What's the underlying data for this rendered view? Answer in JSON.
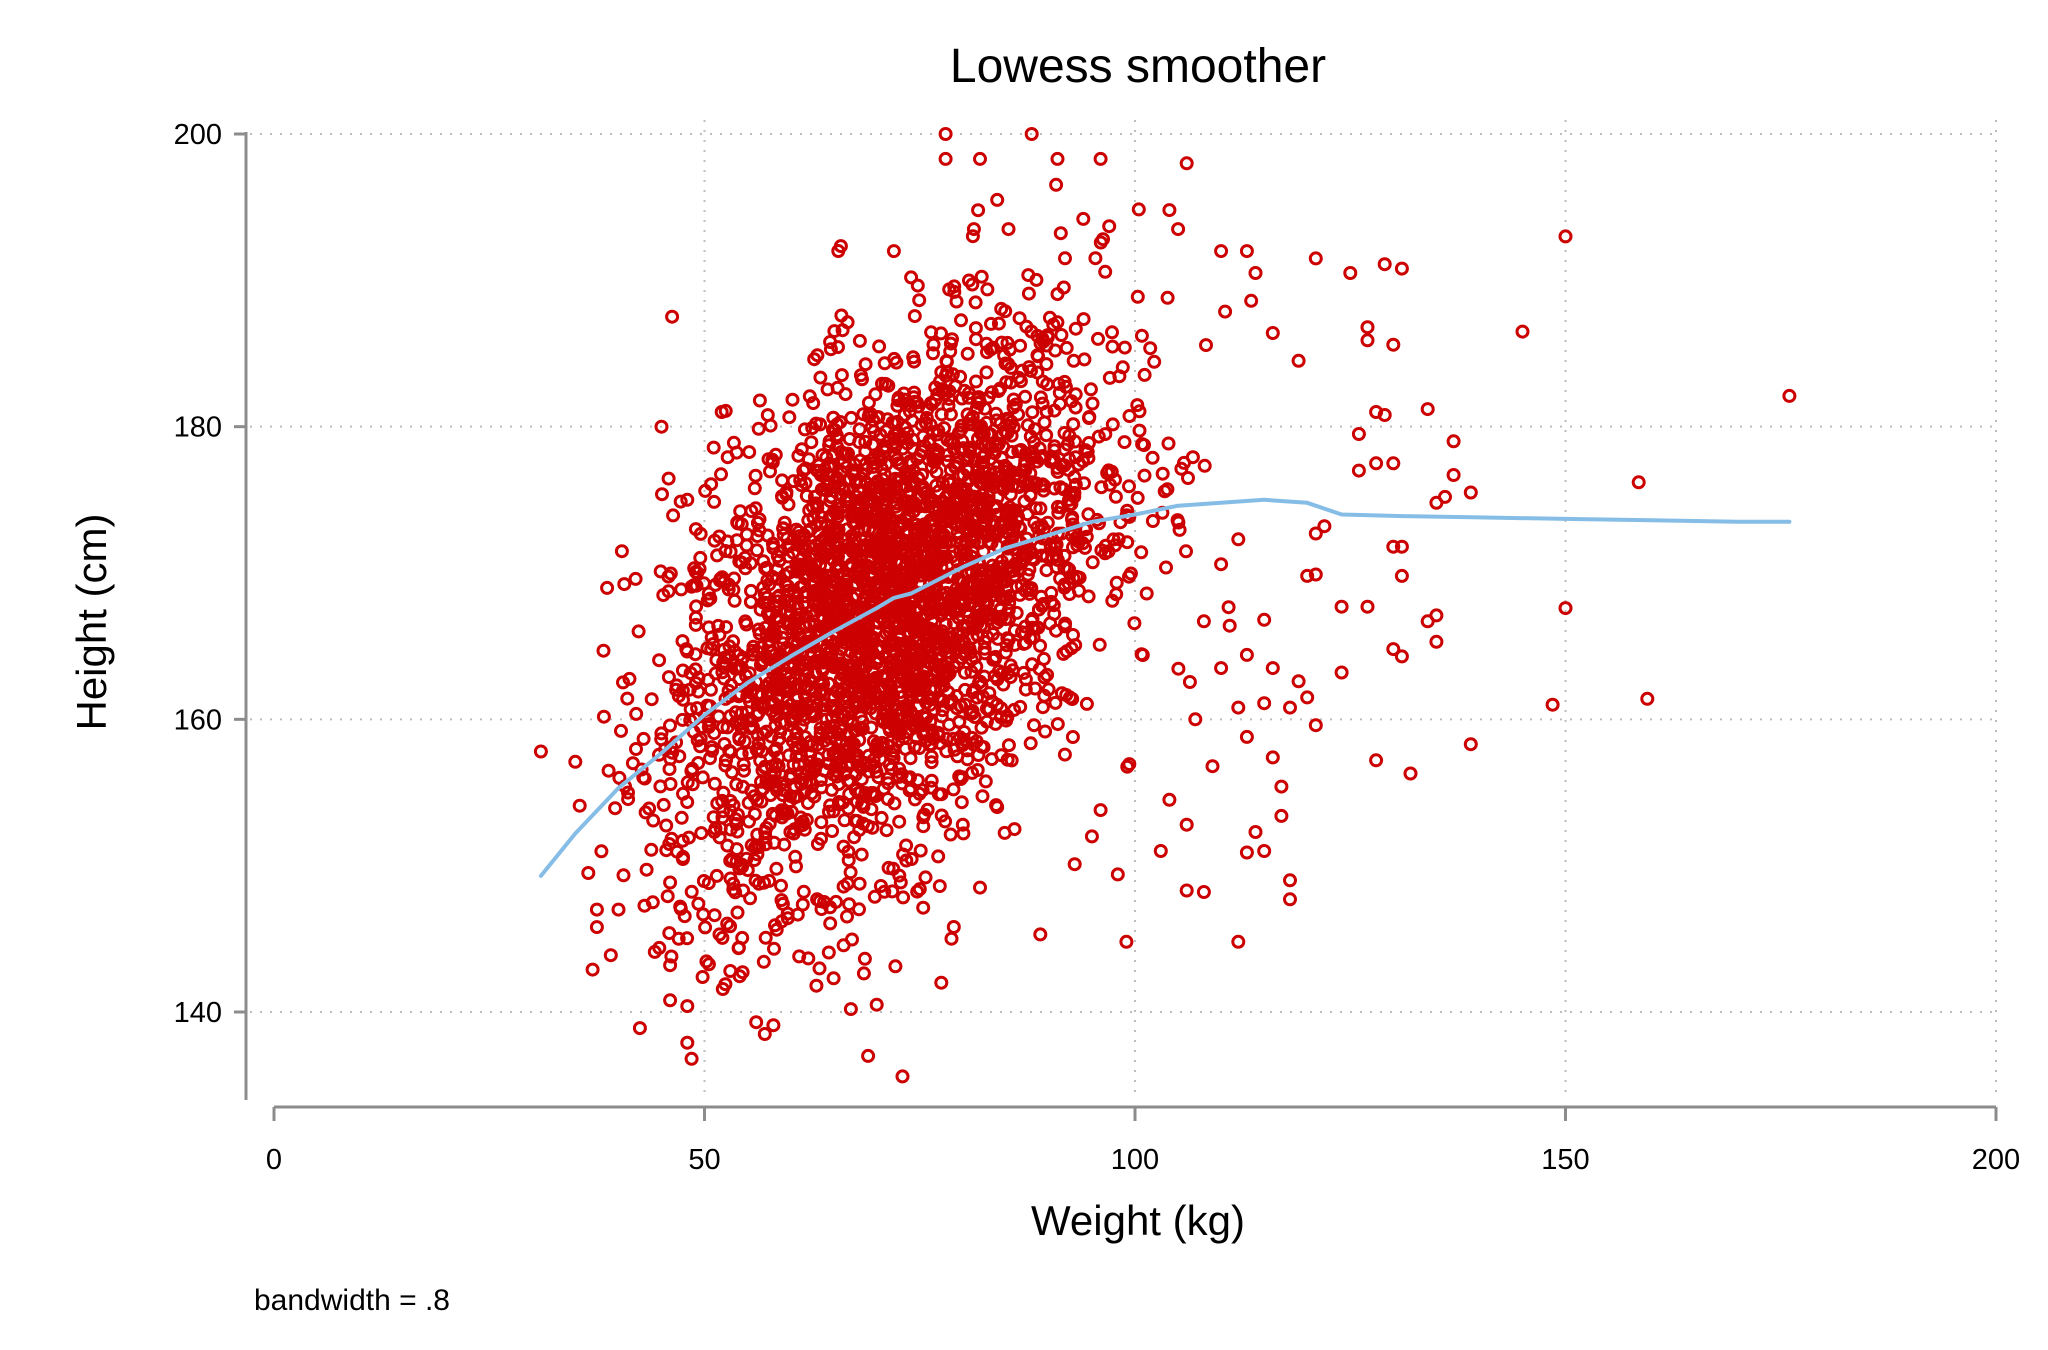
{
  "chart_data": {
    "type": "scatter",
    "title": "Lowess smoother",
    "xlabel": "Weight (kg)",
    "ylabel": "Height (cm)",
    "note": "bandwidth = .8",
    "xlim": [
      0,
      200
    ],
    "ylim": [
      133,
      200
    ],
    "xticks": [
      0,
      50,
      100,
      150,
      200
    ],
    "yticks": [
      140,
      160,
      180,
      200
    ],
    "xtick_labels": [
      "0",
      "50",
      "100",
      "150",
      "200"
    ],
    "ytick_labels": [
      "140",
      "160",
      "180",
      "200"
    ],
    "grid": true,
    "legend": "none",
    "colors": {
      "points": "#cc0000",
      "smoother": "#86bde6",
      "axis": "#8c8c8c",
      "grid": "#bdbdbd"
    },
    "series": [
      {
        "kind": "scatter",
        "cluster": {
          "count": 3200,
          "x_mean": 71,
          "x_sd": 12.5,
          "y_mean": 167.5,
          "y_sd": 9.2,
          "corr": 0.48
        },
        "values": [
          [
            31,
            157.8
          ],
          [
            35,
            157.1
          ],
          [
            35.5,
            154.1
          ],
          [
            36.5,
            149.5
          ],
          [
            37,
            142.9
          ],
          [
            37.5,
            147
          ],
          [
            37.5,
            145.8
          ],
          [
            42,
            169.6
          ],
          [
            42.5,
            138.9
          ],
          [
            46,
            140.8
          ],
          [
            48,
            140.4
          ],
          [
            48,
            137.9
          ],
          [
            48.5,
            136.8
          ],
          [
            45,
            180
          ],
          [
            48,
            175
          ],
          [
            49,
            173
          ],
          [
            52,
            181
          ],
          [
            56,
            139.3
          ],
          [
            57,
            138.5
          ],
          [
            58,
            139.1
          ],
          [
            69,
            137
          ],
          [
            73,
            135.6
          ],
          [
            77.5,
            142
          ],
          [
            72,
            192
          ],
          [
            74,
            190.2
          ],
          [
            78,
            200
          ],
          [
            88,
            200
          ],
          [
            78,
            198.3
          ],
          [
            82,
            198.3
          ],
          [
            91,
            198.3
          ],
          [
            96,
            198.3
          ],
          [
            106,
            198
          ],
          [
            84,
            195.5
          ],
          [
            104,
            194.8
          ],
          [
            94,
            194.2
          ],
          [
            97,
            193.7
          ],
          [
            105,
            193.5
          ],
          [
            110,
            192
          ],
          [
            113,
            192
          ],
          [
            114,
            190.5
          ],
          [
            113.5,
            188.6
          ],
          [
            116,
            186.4
          ],
          [
            121,
            191.5
          ],
          [
            125,
            190.5
          ],
          [
            127,
            186.8
          ],
          [
            129,
            191.1
          ],
          [
            131,
            190.8
          ],
          [
            130,
            185.6
          ],
          [
            127,
            185.9
          ],
          [
            128,
            181
          ],
          [
            129,
            180.8
          ],
          [
            134,
            181.2
          ],
          [
            119,
            184.5
          ],
          [
            126,
            179.5
          ],
          [
            128,
            177.5
          ],
          [
            130,
            177.5
          ],
          [
            137,
            179
          ],
          [
            126,
            177
          ],
          [
            137,
            176.7
          ],
          [
            139,
            175.5
          ],
          [
            136,
            175.2
          ],
          [
            135,
            174.8
          ],
          [
            145,
            186.5
          ],
          [
            150,
            193
          ],
          [
            176,
            182.1
          ],
          [
            158.5,
            176.2
          ],
          [
            150,
            167.6
          ],
          [
            148.5,
            161
          ],
          [
            159.5,
            161.4
          ],
          [
            139,
            158.3
          ],
          [
            132,
            156.3
          ],
          [
            128,
            157.2
          ],
          [
            130,
            171.8
          ],
          [
            131,
            171.8
          ],
          [
            131,
            169.8
          ],
          [
            127,
            167.7
          ],
          [
            124,
            167.7
          ],
          [
            134,
            166.7
          ],
          [
            135,
            167.1
          ],
          [
            135,
            165.3
          ],
          [
            130,
            164.8
          ],
          [
            131,
            164.3
          ],
          [
            124,
            163.2
          ],
          [
            121,
            172.7
          ],
          [
            122,
            173.2
          ],
          [
            121,
            169.9
          ],
          [
            120,
            169.8
          ],
          [
            118,
            160.8
          ],
          [
            121,
            159.6
          ],
          [
            116,
            157.4
          ],
          [
            117,
            155.4
          ],
          [
            117,
            153.4
          ],
          [
            118,
            149
          ],
          [
            118,
            147.7
          ],
          [
            115,
            151
          ],
          [
            114,
            152.3
          ],
          [
            113,
            150.9
          ],
          [
            112,
            144.8
          ],
          [
            103,
            151
          ],
          [
            99,
            144.8
          ],
          [
            108,
            148.2
          ],
          [
            106,
            148.3
          ],
          [
            104,
            154.5
          ],
          [
            106,
            152.8
          ],
          [
            89,
            145.3
          ],
          [
            98,
            149.4
          ],
          [
            95,
            152
          ],
          [
            93,
            150.1
          ],
          [
            96,
            153.8
          ],
          [
            84,
            154
          ],
          [
            86,
            152.5
          ],
          [
            80,
            152.8
          ],
          [
            82,
            148.5
          ],
          [
            75,
            148.4
          ],
          [
            65,
            142.3
          ],
          [
            63,
            141.8
          ],
          [
            67,
            140.2
          ],
          [
            70,
            140.5
          ],
          [
            61,
            143.8
          ],
          [
            53,
            142.8
          ],
          [
            54,
            144.4
          ],
          [
            47,
            145
          ],
          [
            46,
            143.2
          ],
          [
            44,
            147.5
          ],
          [
            110,
            170.6
          ],
          [
            112,
            172.3
          ],
          [
            108,
            166.7
          ],
          [
            111,
            166.4
          ],
          [
            115,
            166.8
          ],
          [
            110,
            163.5
          ],
          [
            113,
            164.4
          ],
          [
            116,
            163.5
          ],
          [
            119,
            162.6
          ],
          [
            107,
            160
          ],
          [
            112,
            160.8
          ],
          [
            115,
            161.1
          ],
          [
            120,
            161.5
          ],
          [
            113,
            158.8
          ],
          [
            109,
            156.8
          ]
        ]
      },
      {
        "kind": "line",
        "x": [
          31,
          35,
          40,
          45,
          50,
          55,
          60,
          65,
          70,
          72,
          74,
          80,
          85,
          90,
          95,
          100,
          105,
          110,
          115,
          120,
          124,
          130,
          140,
          150,
          160,
          170,
          176
        ],
        "values": [
          149.3,
          152.2,
          155.3,
          157.7,
          160.3,
          162.5,
          164.3,
          166,
          167.6,
          168.3,
          168.6,
          170.4,
          171.7,
          172.6,
          173.5,
          174,
          174.6,
          174.8,
          175,
          174.8,
          174,
          173.9,
          173.8,
          173.7,
          173.6,
          173.5,
          173.5
        ]
      }
    ]
  }
}
